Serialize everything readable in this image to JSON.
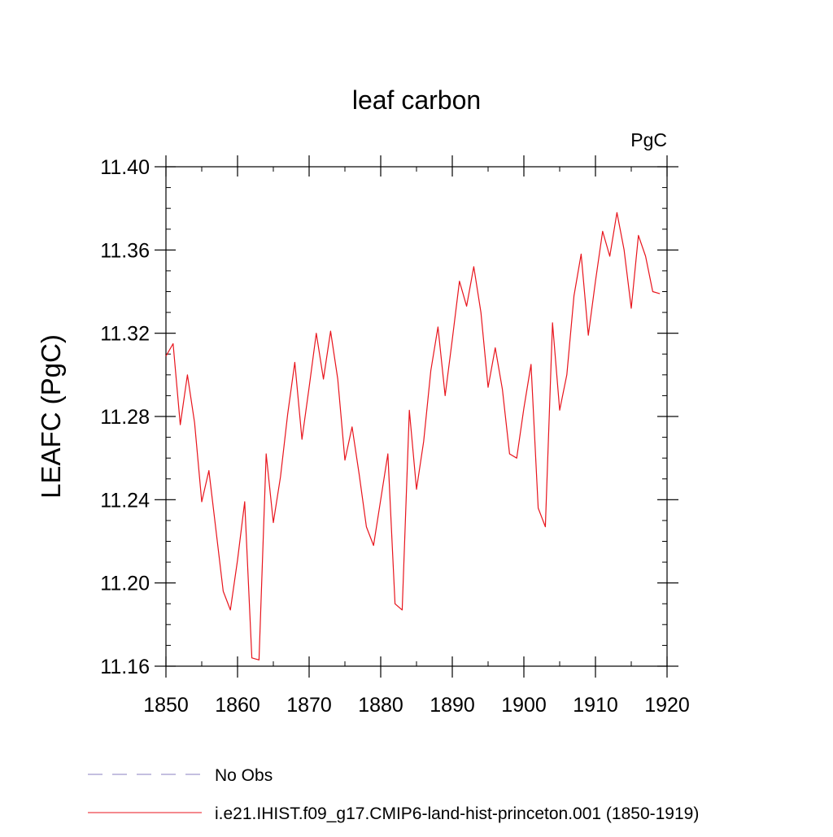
{
  "chart_data": {
    "type": "line",
    "title": "leaf carbon",
    "units": "PgC",
    "ylabel": "LEAFC  (PgC)",
    "xlabel": "",
    "xlim": [
      1850,
      1920
    ],
    "ylim": [
      11.16,
      11.4
    ],
    "x_ticks": [
      1850,
      1860,
      1870,
      1880,
      1890,
      1900,
      1910,
      1920
    ],
    "x_tick_labels": [
      "1850",
      "1860",
      "1870",
      "1880",
      "1890",
      "1900",
      "1910",
      "1920"
    ],
    "y_ticks": [
      11.16,
      11.2,
      11.24,
      11.28,
      11.32,
      11.36,
      11.4
    ],
    "y_tick_labels": [
      "11.16",
      "11.20",
      "11.24",
      "11.28",
      "11.32",
      "11.36",
      "11.40"
    ],
    "grid": false,
    "legend_position": "bottom",
    "legend": [
      {
        "label": "No Obs",
        "color": "#8a7fc0",
        "style": "dashed"
      },
      {
        "label": "i.e21.IHIST.f09_g17.CMIP6-land-hist-princeton.001 (1850-1919)",
        "color": "#e8141c",
        "style": "solid"
      }
    ],
    "series": [
      {
        "name": "i.e21.IHIST.f09_g17.CMIP6-land-hist-princeton.001 (1850-1919)",
        "color": "#e8141c",
        "x": [
          1850,
          1851,
          1852,
          1853,
          1854,
          1855,
          1856,
          1857,
          1858,
          1859,
          1860,
          1861,
          1862,
          1863,
          1864,
          1865,
          1866,
          1867,
          1868,
          1869,
          1870,
          1871,
          1872,
          1873,
          1874,
          1875,
          1876,
          1877,
          1878,
          1879,
          1880,
          1881,
          1882,
          1883,
          1884,
          1885,
          1886,
          1887,
          1888,
          1889,
          1890,
          1891,
          1892,
          1893,
          1894,
          1895,
          1896,
          1897,
          1898,
          1899,
          1900,
          1901,
          1902,
          1903,
          1904,
          1905,
          1906,
          1907,
          1908,
          1909,
          1910,
          1911,
          1912,
          1913,
          1914,
          1915,
          1916,
          1917,
          1918,
          1919
        ],
        "values": [
          11.309,
          11.315,
          11.276,
          11.3,
          11.277,
          11.239,
          11.254,
          11.225,
          11.196,
          11.187,
          11.211,
          11.239,
          11.164,
          11.163,
          11.262,
          11.229,
          11.251,
          11.281,
          11.306,
          11.269,
          11.294,
          11.32,
          11.298,
          11.321,
          11.298,
          11.259,
          11.275,
          11.252,
          11.227,
          11.218,
          11.24,
          11.262,
          11.19,
          11.187,
          11.283,
          11.245,
          11.268,
          11.302,
          11.323,
          11.29,
          11.317,
          11.345,
          11.333,
          11.352,
          11.33,
          11.294,
          11.313,
          11.293,
          11.262,
          11.26,
          11.284,
          11.305,
          11.236,
          11.227,
          11.325,
          11.283,
          11.3,
          11.338,
          11.358,
          11.319,
          11.345,
          11.369,
          11.357,
          11.378,
          11.36,
          11.332,
          11.367,
          11.357,
          11.34,
          11.339
        ]
      }
    ]
  }
}
